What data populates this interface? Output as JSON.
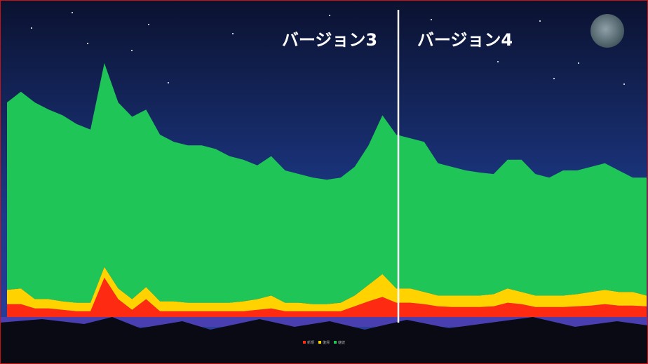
{
  "chart_data": {
    "type": "stacked-area",
    "annotations": [
      "バージョン3",
      "バージョン4"
    ],
    "series": [
      {
        "name": "新規",
        "color": "#ff2a12",
        "values": [
          18,
          18,
          12,
          12,
          10,
          8,
          8,
          55,
          25,
          10,
          25,
          8,
          8,
          8,
          8,
          8,
          8,
          8,
          10,
          12,
          8,
          8,
          8,
          8,
          8,
          15,
          22,
          28,
          20,
          20,
          18,
          15,
          14,
          14,
          14,
          15,
          20,
          18,
          14,
          14,
          14,
          15,
          16,
          18,
          16,
          16,
          15
        ]
      },
      {
        "name": "復帰",
        "color": "#ffd200",
        "values": [
          20,
          22,
          13,
          13,
          12,
          12,
          12,
          15,
          15,
          15,
          17,
          14,
          14,
          12,
          12,
          12,
          12,
          14,
          15,
          18,
          12,
          12,
          10,
          10,
          12,
          15,
          23,
          32,
          20,
          20,
          17,
          15,
          16,
          16,
          16,
          17,
          20,
          17,
          16,
          16,
          16,
          17,
          19,
          20,
          19,
          19,
          15
        ]
      },
      {
        "name": "継続",
        "color": "#1fc657",
        "values": [
          262,
          275,
          275,
          265,
          260,
          250,
          242,
          285,
          260,
          255,
          248,
          233,
          223,
          220,
          220,
          215,
          205,
          198,
          187,
          195,
          185,
          180,
          177,
          174,
          175,
          180,
          195,
          222,
          215,
          210,
          210,
          185,
          180,
          175,
          172,
          168,
          180,
          185,
          170,
          165,
          175,
          173,
          175,
          177,
          170,
          160,
          165
        ]
      }
    ]
  }
}
